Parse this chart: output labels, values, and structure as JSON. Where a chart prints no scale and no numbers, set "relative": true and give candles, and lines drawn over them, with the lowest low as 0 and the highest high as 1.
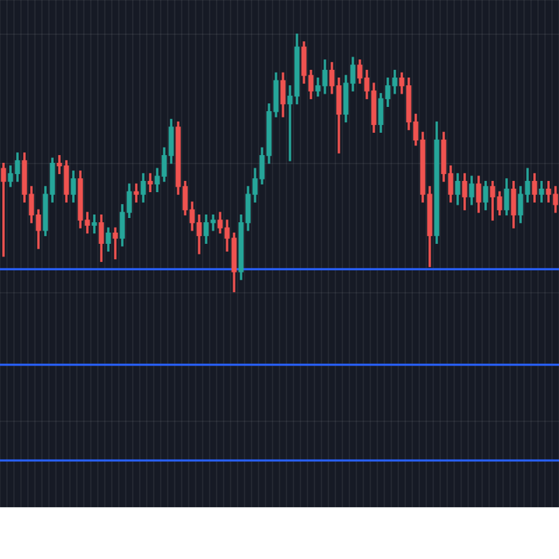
{
  "chart_data": {
    "type": "candlestick",
    "relative": true,
    "grid": true,
    "categories": [
      null,
      null,
      null,
      null,
      null,
      null,
      null,
      null,
      null,
      null,
      null,
      null,
      null,
      null,
      null,
      null,
      null,
      null,
      null,
      null,
      null,
      null,
      null,
      null,
      null,
      null,
      null,
      null,
      null,
      null,
      null,
      null,
      null,
      null,
      null,
      null,
      null,
      null,
      null,
      null,
      null,
      null,
      null,
      null,
      null,
      null,
      null,
      null,
      null,
      null,
      null,
      null,
      null,
      null,
      null,
      null,
      null,
      null,
      null,
      null,
      null,
      null,
      null,
      null,
      null,
      null,
      null,
      null,
      null,
      null,
      null,
      null,
      null,
      null,
      null,
      null,
      null,
      null,
      null,
      null
    ],
    "ohlc": [
      [
        0.48,
        0.5,
        0.14,
        0.43
      ],
      [
        0.43,
        0.49,
        0.41,
        0.46
      ],
      [
        0.46,
        0.54,
        0.43,
        0.51
      ],
      [
        0.51,
        0.54,
        0.35,
        0.38
      ],
      [
        0.38,
        0.41,
        0.27,
        0.3
      ],
      [
        0.3,
        0.32,
        0.17,
        0.24
      ],
      [
        0.24,
        0.41,
        0.22,
        0.38
      ],
      [
        0.38,
        0.52,
        0.35,
        0.5
      ],
      [
        0.5,
        0.53,
        0.46,
        0.49
      ],
      [
        0.49,
        0.51,
        0.35,
        0.38
      ],
      [
        0.38,
        0.47,
        0.35,
        0.44
      ],
      [
        0.44,
        0.47,
        0.25,
        0.28
      ],
      [
        0.28,
        0.31,
        0.23,
        0.26
      ],
      [
        0.26,
        0.3,
        0.23,
        0.27
      ],
      [
        0.27,
        0.3,
        0.12,
        0.19
      ],
      [
        0.19,
        0.25,
        0.16,
        0.23
      ],
      [
        0.23,
        0.25,
        0.13,
        0.21
      ],
      [
        0.21,
        0.34,
        0.18,
        0.31
      ],
      [
        0.31,
        0.42,
        0.29,
        0.39
      ],
      [
        0.39,
        0.42,
        0.35,
        0.38
      ],
      [
        0.38,
        0.46,
        0.35,
        0.43
      ],
      [
        0.43,
        0.46,
        0.39,
        0.42
      ],
      [
        0.42,
        0.48,
        0.39,
        0.45
      ],
      [
        0.45,
        0.56,
        0.43,
        0.53
      ],
      [
        0.53,
        0.67,
        0.5,
        0.64
      ],
      [
        0.64,
        0.66,
        0.38,
        0.41
      ],
      [
        0.41,
        0.43,
        0.3,
        0.32
      ],
      [
        0.32,
        0.35,
        0.24,
        0.27
      ],
      [
        0.27,
        0.3,
        0.15,
        0.22
      ],
      [
        0.22,
        0.3,
        0.19,
        0.27
      ],
      [
        0.27,
        0.3,
        0.24,
        0.28
      ],
      [
        0.28,
        0.31,
        0.23,
        0.25
      ],
      [
        0.25,
        0.28,
        0.16,
        0.21
      ],
      [
        0.21,
        0.23,
        0,
        0.08
      ],
      [
        0.08,
        0.3,
        0.05,
        0.27
      ],
      [
        0.27,
        0.41,
        0.24,
        0.38
      ],
      [
        0.38,
        0.48,
        0.35,
        0.44
      ],
      [
        0.44,
        0.56,
        0.42,
        0.53
      ],
      [
        0.53,
        0.73,
        0.5,
        0.7
      ],
      [
        0.7,
        0.85,
        0.68,
        0.82
      ],
      [
        0.82,
        0.85,
        0.68,
        0.73
      ],
      [
        0.73,
        0.8,
        0.51,
        0.76
      ],
      [
        0.76,
        1,
        0.73,
        0.95
      ],
      [
        0.95,
        0.97,
        0.81,
        0.84
      ],
      [
        0.84,
        0.86,
        0.75,
        0.78
      ],
      [
        0.78,
        0.83,
        0.76,
        0.8
      ],
      [
        0.8,
        0.9,
        0.77,
        0.86
      ],
      [
        0.86,
        0.89,
        0.77,
        0.8
      ],
      [
        0.8,
        0.83,
        0.54,
        0.69
      ],
      [
        0.69,
        0.84,
        0.66,
        0.81
      ],
      [
        0.81,
        0.91,
        0.78,
        0.88
      ],
      [
        0.88,
        0.9,
        0.81,
        0.83
      ],
      [
        0.83,
        0.86,
        0.75,
        0.78
      ],
      [
        0.78,
        0.81,
        0.62,
        0.65
      ],
      [
        0.65,
        0.77,
        0.62,
        0.75
      ],
      [
        0.75,
        0.83,
        0.72,
        0.8
      ],
      [
        0.8,
        0.86,
        0.77,
        0.83
      ],
      [
        0.83,
        0.85,
        0.77,
        0.8
      ],
      [
        0.8,
        0.83,
        0.63,
        0.66
      ],
      [
        0.66,
        0.69,
        0.57,
        0.59
      ],
      [
        0.59,
        0.62,
        0.35,
        0.38
      ],
      [
        0.38,
        0.41,
        0.1,
        0.22
      ],
      [
        0.22,
        0.66,
        0.19,
        0.59
      ],
      [
        0.59,
        0.62,
        0.43,
        0.46
      ],
      [
        0.46,
        0.49,
        0.35,
        0.38
      ],
      [
        0.38,
        0.46,
        0.34,
        0.43
      ],
      [
        0.43,
        0.46,
        0.32,
        0.37
      ],
      [
        0.37,
        0.45,
        0.34,
        0.42
      ],
      [
        0.42,
        0.45,
        0.31,
        0.35
      ],
      [
        0.35,
        0.43,
        0.32,
        0.41
      ],
      [
        0.41,
        0.43,
        0.28,
        0.37
      ],
      [
        0.37,
        0.39,
        0.3,
        0.32
      ],
      [
        0.32,
        0.44,
        0.3,
        0.4
      ],
      [
        0.4,
        0.43,
        0.25,
        0.3
      ],
      [
        0.3,
        0.41,
        0.27,
        0.38
      ],
      [
        0.38,
        0.48,
        0.35,
        0.43
      ],
      [
        0.43,
        0.46,
        0.35,
        0.38
      ],
      [
        0.38,
        0.43,
        0.35,
        0.4
      ],
      [
        0.4,
        0.43,
        0.35,
        0.38
      ],
      [
        0.38,
        0.41,
        0.31,
        0.34
      ]
    ],
    "ref_lines": [
      {
        "axis": "y",
        "value": 0.09,
        "color": "#2962ff"
      },
      {
        "axis": "y",
        "value": -0.28,
        "color": "#2962ff"
      },
      {
        "axis": "y",
        "value": -0.65,
        "color": "#2962ff"
      }
    ]
  }
}
